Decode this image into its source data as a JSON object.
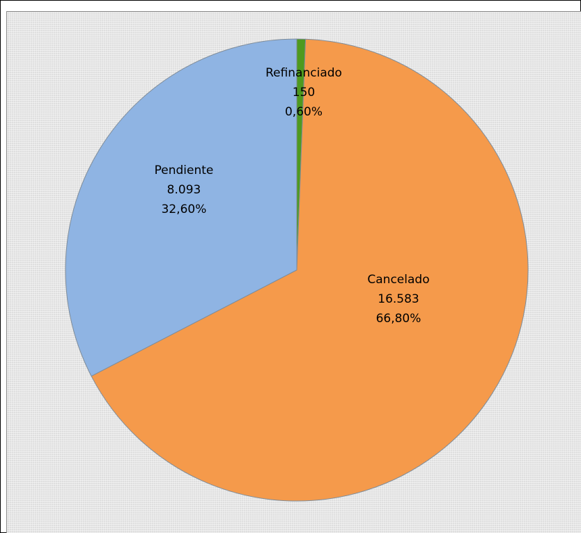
{
  "chart_data": {
    "type": "pie",
    "title": "",
    "slices": [
      {
        "label": "Refinanciado",
        "value": 150,
        "value_text": "150",
        "percent_text": "0,60%",
        "color": "#4e9a1f"
      },
      {
        "label": "Cancelado",
        "value": 16583,
        "value_text": "16.583",
        "percent_text": "66,80%",
        "color": "#f59a4b"
      },
      {
        "label": "Pendiente",
        "value": 8093,
        "value_text": "8.093",
        "percent_text": "32,60%",
        "color": "#8fb4e3"
      }
    ],
    "legend": "none"
  },
  "colors": {
    "background": "#dedede",
    "slice_border": "#7f8c99"
  }
}
